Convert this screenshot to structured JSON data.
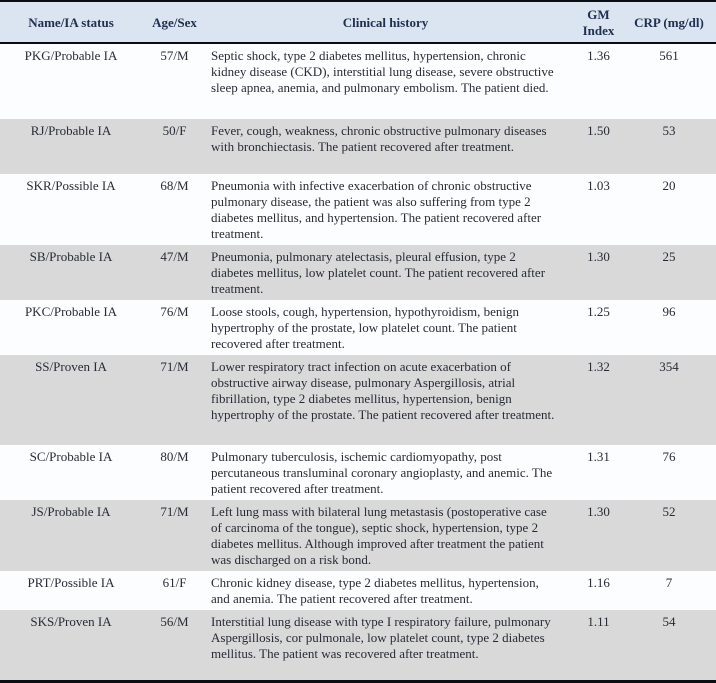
{
  "colors": {
    "header_bg": "#dbe5f1",
    "row_bg": "#fcfdfe",
    "row_alt_bg": "#d9d9d9",
    "border": "#0a0d12",
    "text": "#272b36",
    "header_text": "#20304f"
  },
  "table": {
    "columns": [
      "Name/IA status",
      "Age/Sex",
      "Clinical history",
      "GM Index",
      "CRP (mg/dl)"
    ],
    "rows": [
      {
        "name": "PKG/Probable IA",
        "age_sex": "57/M",
        "history": "Septic shock, type 2 diabetes mellitus, hypertension, chronic kidney disease (CKD), interstitial lung disease, severe obstructive sleep apnea, anemia, and pulmonary embolism. The patient died.",
        "gm_index": "1.36",
        "crp": "561"
      },
      {
        "name": "RJ/Probable IA",
        "age_sex": "50/F",
        "history": "Fever, cough, weakness, chronic obstructive pulmonary diseases with bronchiectasis. The patient recovered after treatment.",
        "gm_index": "1.50",
        "crp": "53"
      },
      {
        "name": "SKR/Possible IA",
        "age_sex": "68/M",
        "history": "Pneumonia with infective exacerbation of chronic obstructive pulmonary disease, the patient was also suffering from type 2 diabetes mellitus, and hypertension. The patient recovered after treatment.",
        "gm_index": "1.03",
        "crp": "20"
      },
      {
        "name": "SB/Probable IA",
        "age_sex": "47/M",
        "history": "Pneumonia, pulmonary atelectasis, pleural effusion, type 2 diabetes mellitus, low platelet count. The patient recovered after treatment.",
        "gm_index": "1.30",
        "crp": "25"
      },
      {
        "name": "PKC/Probable IA",
        "age_sex": "76/M",
        "history": "Loose stools, cough, hypertension, hypothyroidism, benign hypertrophy of the prostate, low platelet count. The patient recovered after treatment.",
        "gm_index": "1.25",
        "crp": "96"
      },
      {
        "name": "SS/Proven IA",
        "age_sex": "71/M",
        "history": "Lower respiratory tract infection on acute exacerbation of obstructive airway disease, pulmonary Aspergillosis, atrial fibrillation, type 2 diabetes mellitus, hypertension, benign hypertrophy of the prostate. The patient recovered after treatment.",
        "gm_index": "1.32",
        "crp": "354"
      },
      {
        "name": "SC/Probable IA",
        "age_sex": "80/M",
        "history": "Pulmonary tuberculosis, ischemic cardiomyopathy, post percutaneous transluminal coronary angioplasty, and anemic. The patient recovered after treatment.",
        "gm_index": "1.31",
        "crp": "76"
      },
      {
        "name": "JS/Probable IA",
        "age_sex": "71/M",
        "history": "Left lung mass with bilateral lung metastasis (postoperative case of carcinoma of the tongue), septic shock, hypertension, type 2 diabetes mellitus. Although improved after treatment the patient was discharged on a risk bond.",
        "gm_index": "1.30",
        "crp": "52"
      },
      {
        "name": "PRT/Possible IA",
        "age_sex": "61/F",
        "history": "Chronic kidney disease, type 2 diabetes mellitus, hypertension, and anemia. The patient recovered after treatment.",
        "gm_index": "1.16",
        "crp": "7"
      },
      {
        "name": "SKS/Proven IA",
        "age_sex": "56/M",
        "history": "Interstitial lung disease with type I respiratory failure, pulmonary Aspergillosis, cor pulmonale, low platelet count, type 2 diabetes mellitus. The patient was recovered after treatment.",
        "gm_index": "1.11",
        "crp": "54"
      }
    ]
  }
}
